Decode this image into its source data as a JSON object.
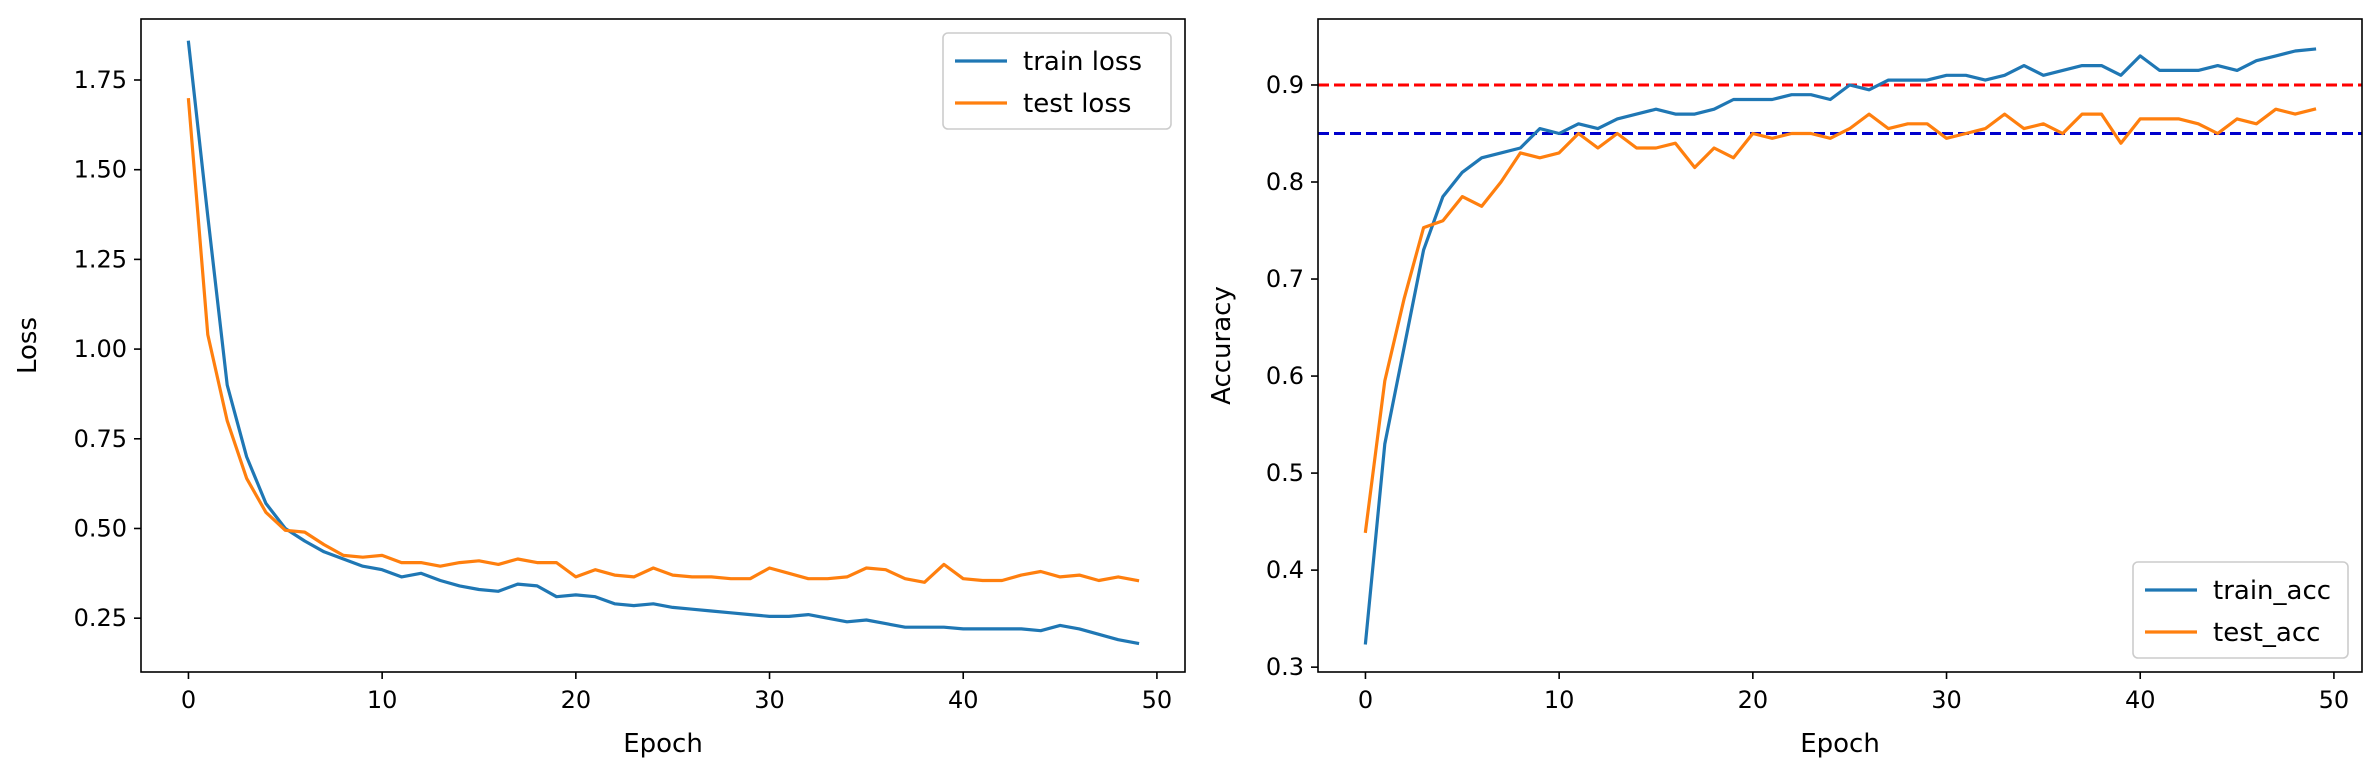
{
  "chart_data": [
    {
      "type": "line",
      "title": "",
      "xlabel": "Epoch",
      "ylabel": "Loss",
      "xlim": [
        -2.45,
        51.45
      ],
      "ylim": [
        0.1,
        1.92
      ],
      "xticks": [
        0,
        10,
        20,
        30,
        40,
        50
      ],
      "yticks": [
        0.25,
        0.5,
        0.75,
        1.0,
        1.25,
        1.5,
        1.75
      ],
      "ytick_labels": [
        "0.25",
        "0.50",
        "0.75",
        "1.00",
        "1.25",
        "1.50",
        "1.75"
      ],
      "legend_position": "top-right",
      "grid": false,
      "x": [
        0,
        1,
        2,
        3,
        4,
        5,
        6,
        7,
        8,
        9,
        10,
        11,
        12,
        13,
        14,
        15,
        16,
        17,
        18,
        19,
        20,
        21,
        22,
        23,
        24,
        25,
        26,
        27,
        28,
        29,
        30,
        31,
        32,
        33,
        34,
        35,
        36,
        37,
        38,
        39,
        40,
        41,
        42,
        43,
        44,
        45,
        46,
        47,
        48,
        49
      ],
      "series": [
        {
          "name": "train loss",
          "color": "#1f77b4",
          "values": [
            1.855,
            1.37,
            0.9,
            0.7,
            0.57,
            0.5,
            0.465,
            0.435,
            0.415,
            0.395,
            0.385,
            0.365,
            0.375,
            0.355,
            0.34,
            0.33,
            0.325,
            0.345,
            0.34,
            0.31,
            0.315,
            0.31,
            0.29,
            0.285,
            0.29,
            0.28,
            0.275,
            0.27,
            0.265,
            0.26,
            0.255,
            0.255,
            0.26,
            0.25,
            0.24,
            0.245,
            0.235,
            0.225,
            0.225,
            0.225,
            0.22,
            0.22,
            0.22,
            0.22,
            0.215,
            0.23,
            0.22,
            0.205,
            0.19,
            0.18
          ]
        },
        {
          "name": "test loss",
          "color": "#ff7f0e",
          "values": [
            1.695,
            1.04,
            0.8,
            0.64,
            0.545,
            0.495,
            0.49,
            0.455,
            0.425,
            0.42,
            0.425,
            0.405,
            0.405,
            0.395,
            0.405,
            0.41,
            0.4,
            0.415,
            0.405,
            0.405,
            0.365,
            0.385,
            0.37,
            0.365,
            0.39,
            0.37,
            0.365,
            0.365,
            0.36,
            0.36,
            0.39,
            0.375,
            0.36,
            0.36,
            0.365,
            0.39,
            0.385,
            0.36,
            0.35,
            0.4,
            0.36,
            0.355,
            0.355,
            0.37,
            0.38,
            0.365,
            0.37,
            0.355,
            0.365,
            0.355
          ]
        }
      ]
    },
    {
      "type": "line",
      "title": "",
      "xlabel": "Epoch",
      "ylabel": "Accuracy",
      "xlim": [
        -2.45,
        51.45
      ],
      "ylim": [
        0.295,
        0.968
      ],
      "xticks": [
        0,
        10,
        20,
        30,
        40,
        50
      ],
      "yticks": [
        0.3,
        0.4,
        0.5,
        0.6,
        0.7,
        0.8,
        0.9
      ],
      "ytick_labels": [
        "0.3",
        "0.4",
        "0.5",
        "0.6",
        "0.7",
        "0.8",
        "0.9"
      ],
      "legend_position": "bottom-right",
      "grid": false,
      "reference_lines": [
        {
          "y": 0.9,
          "color": "#ff0000",
          "style": "dashed"
        },
        {
          "y": 0.85,
          "color": "#0000cc",
          "style": "dashed"
        }
      ],
      "x": [
        0,
        1,
        2,
        3,
        4,
        5,
        6,
        7,
        8,
        9,
        10,
        11,
        12,
        13,
        14,
        15,
        16,
        17,
        18,
        19,
        20,
        21,
        22,
        23,
        24,
        25,
        26,
        27,
        28,
        29,
        30,
        31,
        32,
        33,
        34,
        35,
        36,
        37,
        38,
        39,
        40,
        41,
        42,
        43,
        44,
        45,
        46,
        47,
        48,
        49
      ],
      "series": [
        {
          "name": "train_acc",
          "color": "#1f77b4",
          "values": [
            0.325,
            0.53,
            0.63,
            0.73,
            0.785,
            0.81,
            0.825,
            0.83,
            0.835,
            0.855,
            0.85,
            0.86,
            0.855,
            0.865,
            0.87,
            0.875,
            0.87,
            0.87,
            0.875,
            0.885,
            0.885,
            0.885,
            0.89,
            0.89,
            0.885,
            0.9,
            0.895,
            0.905,
            0.905,
            0.905,
            0.91,
            0.91,
            0.905,
            0.91,
            0.92,
            0.91,
            0.915,
            0.92,
            0.92,
            0.91,
            0.93,
            0.915,
            0.915,
            0.915,
            0.92,
            0.915,
            0.925,
            0.93,
            0.935,
            0.937
          ]
        },
        {
          "name": "test_acc",
          "color": "#ff7f0e",
          "values": [
            0.44,
            0.595,
            0.68,
            0.753,
            0.76,
            0.785,
            0.775,
            0.8,
            0.83,
            0.825,
            0.83,
            0.85,
            0.835,
            0.85,
            0.835,
            0.835,
            0.84,
            0.815,
            0.835,
            0.825,
            0.85,
            0.845,
            0.85,
            0.85,
            0.845,
            0.855,
            0.87,
            0.855,
            0.86,
            0.86,
            0.845,
            0.85,
            0.855,
            0.87,
            0.855,
            0.86,
            0.85,
            0.87,
            0.87,
            0.84,
            0.865,
            0.865,
            0.865,
            0.86,
            0.85,
            0.865,
            0.86,
            0.875,
            0.87,
            0.875
          ]
        }
      ]
    }
  ]
}
